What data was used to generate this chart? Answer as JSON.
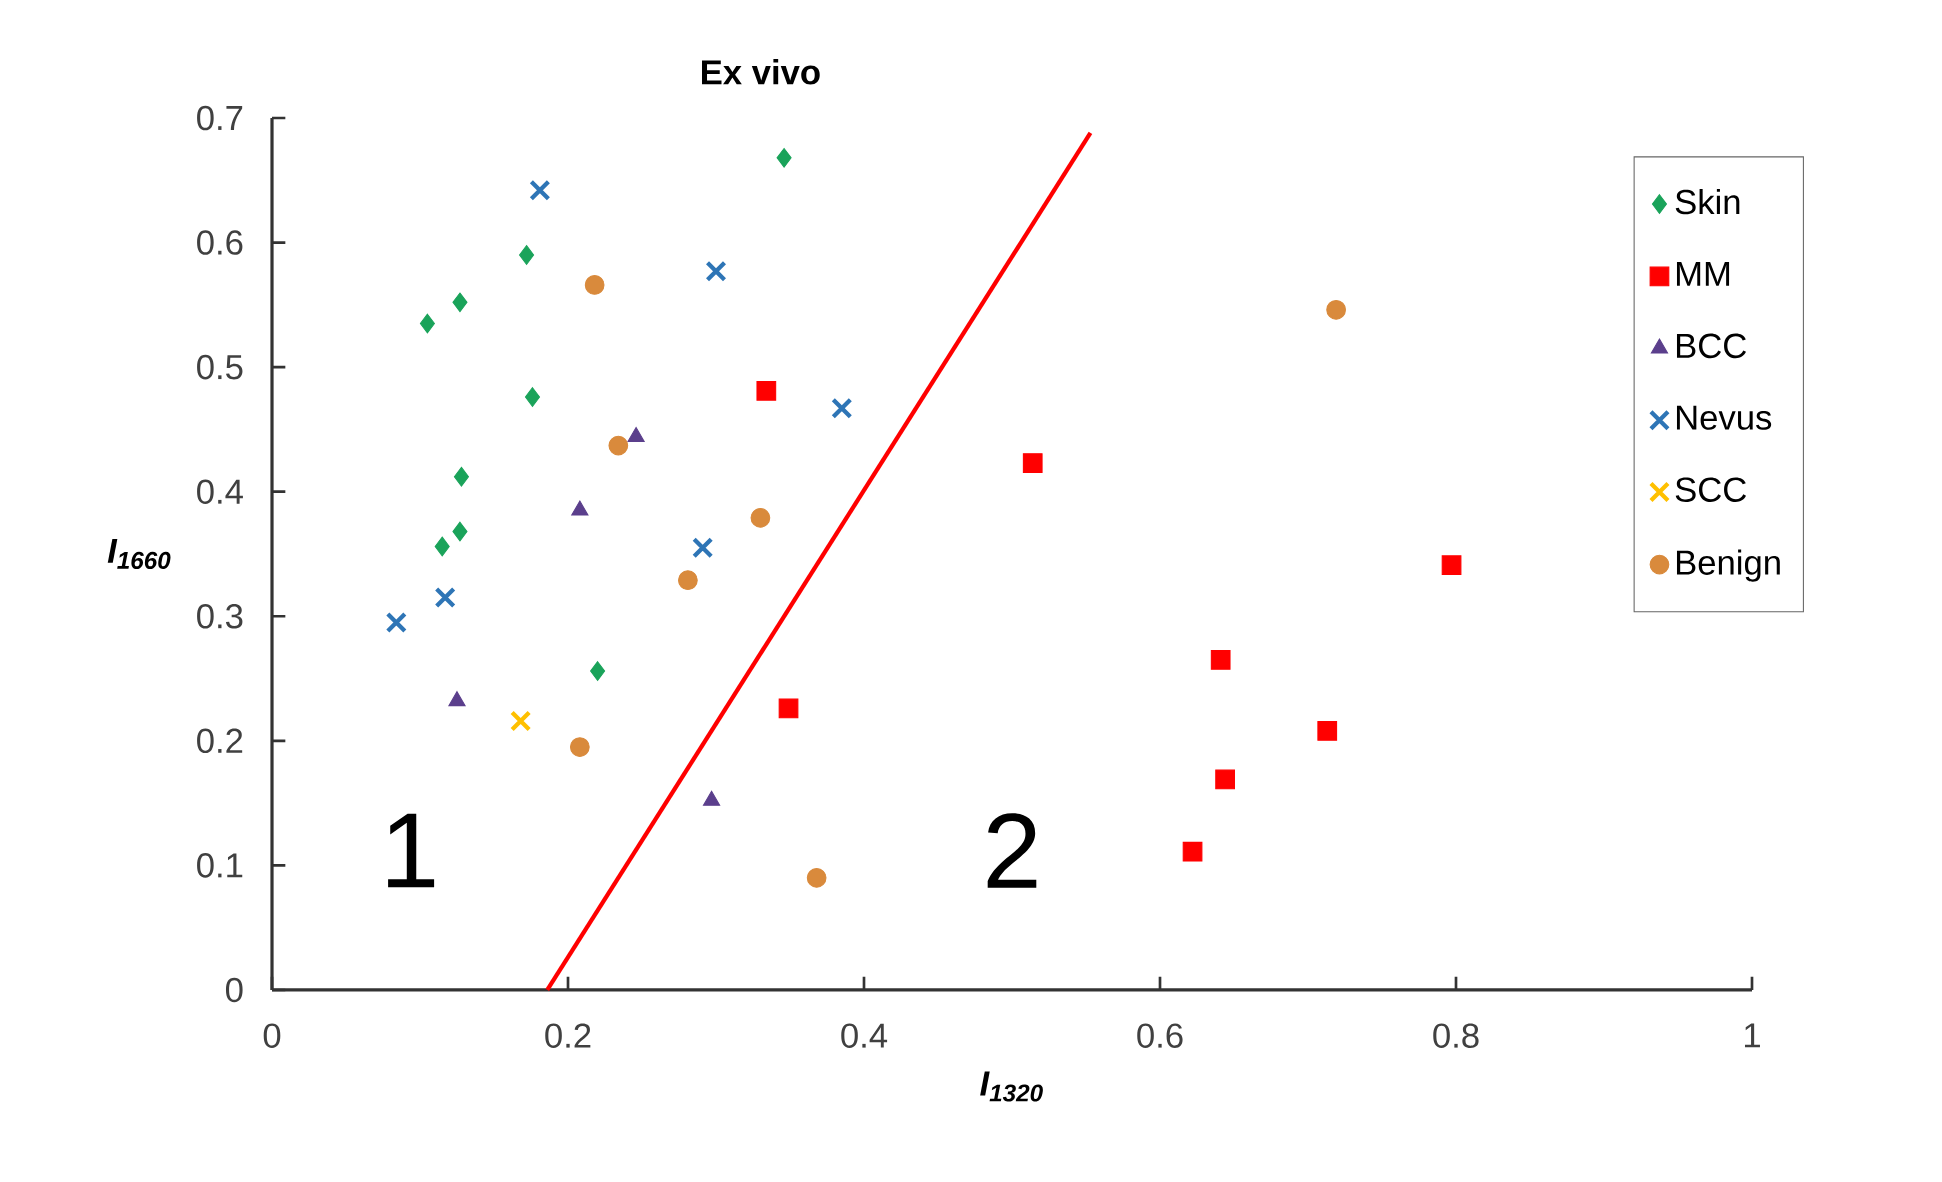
{
  "chart_data": {
    "type": "scatter",
    "title": "Ex vivo",
    "xlabel": "I$_{1320}$",
    "ylabel": "I$_{1660}$",
    "xlim": [
      0,
      1
    ],
    "ylim": [
      0,
      0.7
    ],
    "xticks": [
      0,
      0.2,
      0.4,
      0.6,
      0.8,
      1
    ],
    "yticks": [
      0,
      0.1,
      0.2,
      0.3,
      0.4,
      0.5,
      0.6,
      0.7
    ],
    "grid": false,
    "legend": "top right",
    "series": [
      {
        "name": "Skin",
        "color": "#1aa35a",
        "marker": "diamond",
        "x": [
          0.346,
          0.172,
          0.127,
          0.105,
          0.176,
          0.128,
          0.127,
          0.115,
          0.22
        ],
        "values": [
          0.668,
          0.59,
          0.552,
          0.535,
          0.476,
          0.412,
          0.368,
          0.356,
          0.256
        ]
      },
      {
        "name": "MM",
        "color": "#ff0000",
        "marker": "square",
        "x": [
          0.334,
          0.349,
          0.514,
          0.797,
          0.641,
          0.713,
          0.644,
          0.622
        ],
        "values": [
          0.481,
          0.226,
          0.423,
          0.341,
          0.265,
          0.208,
          0.169,
          0.111
        ]
      },
      {
        "name": "BCC",
        "color": "#5b3f8c",
        "marker": "triangle",
        "x": [
          0.246,
          0.208,
          0.125,
          0.297
        ],
        "values": [
          0.444,
          0.385,
          0.232,
          0.152
        ]
      },
      {
        "name": "Nevus",
        "color": "#2e75b6",
        "marker": "cross",
        "x": [
          0.181,
          0.3,
          0.385,
          0.291,
          0.117,
          0.084
        ],
        "values": [
          0.642,
          0.577,
          0.467,
          0.355,
          0.315,
          0.295
        ]
      },
      {
        "name": "SCC",
        "color": "#ffc000",
        "marker": "cross",
        "x": [
          0.168
        ],
        "values": [
          0.216
        ]
      },
      {
        "name": "Benign",
        "color": "#d98a3c",
        "marker": "circle",
        "x": [
          0.218,
          0.234,
          0.33,
          0.281,
          0.208,
          0.368,
          0.719
        ],
        "values": [
          0.566,
          0.437,
          0.379,
          0.329,
          0.195,
          0.09,
          0.546
        ]
      },
      {
        "type": "line",
        "color": "#ff0000",
        "marker": "none",
        "x": [
          0.186,
          0.553
        ],
        "values": [
          0,
          0.688
        ]
      }
    ],
    "annotations": [
      "1",
      "2"
    ]
  }
}
